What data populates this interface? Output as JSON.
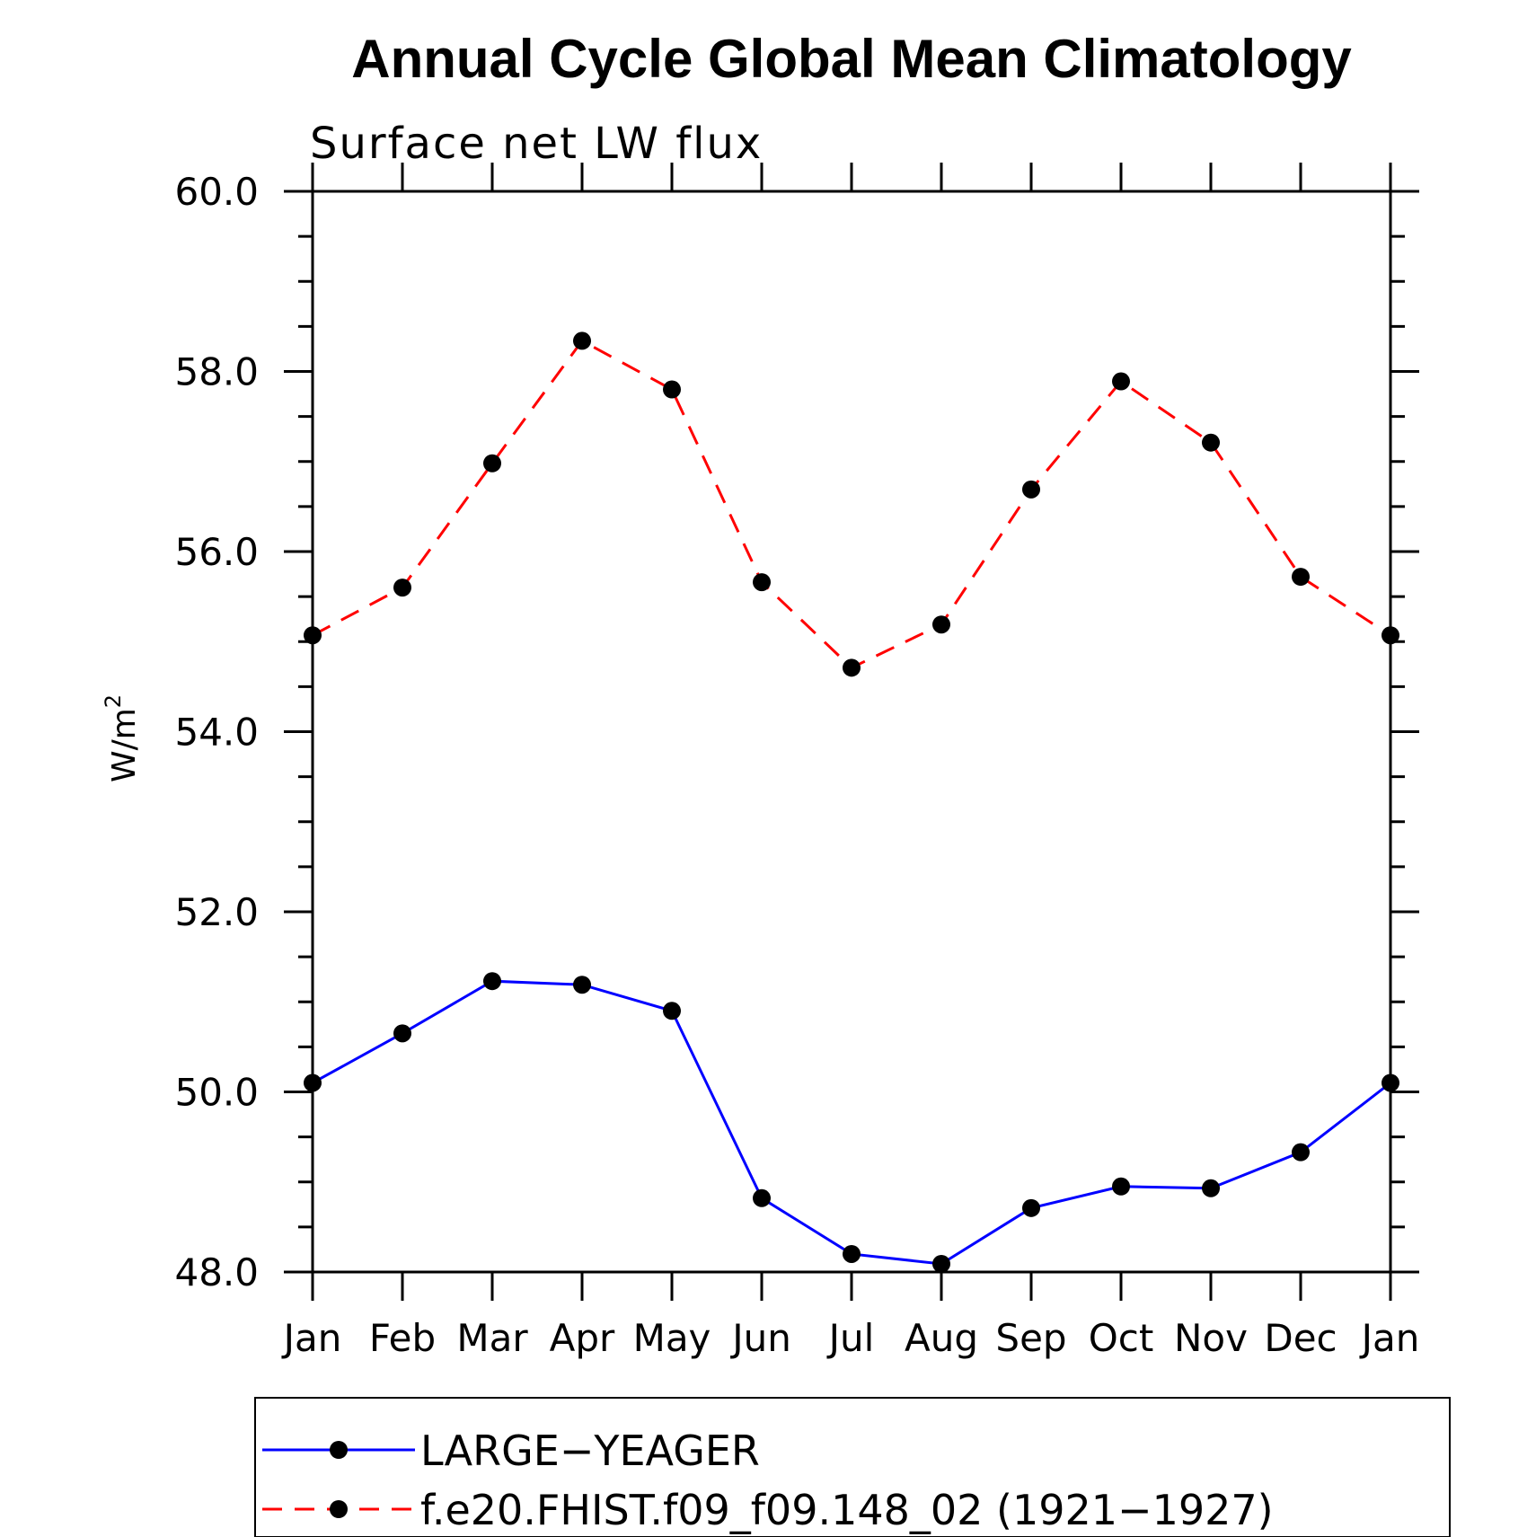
{
  "chart_data": {
    "type": "line",
    "title": "Annual Cycle Global Mean Climatology",
    "subtitle": "Surface net LW flux",
    "ylabel": "W/m",
    "ylabel_superscript": "2",
    "xlabel": "",
    "categories": [
      "Jan",
      "Feb",
      "Mar",
      "Apr",
      "May",
      "Jun",
      "Jul",
      "Aug",
      "Sep",
      "Oct",
      "Nov",
      "Dec",
      "Jan"
    ],
    "ylim": [
      48.0,
      60.0
    ],
    "yticks": [
      "48.0",
      "50.0",
      "52.0",
      "54.0",
      "56.0",
      "58.0",
      "60.0"
    ],
    "grid": false,
    "legend_position": "bottom",
    "series": [
      {
        "name": "LARGE−YEAGER",
        "color": "#0000ff",
        "line_style": "solid",
        "marker": "filled-circle",
        "values": [
          50.1,
          50.65,
          51.23,
          51.19,
          50.9,
          48.82,
          48.2,
          48.09,
          48.71,
          48.95,
          48.93,
          49.33,
          50.1
        ]
      },
      {
        "name": "f.e20.FHIST.f09_f09.148_02 (1921−1927)",
        "color": "#ff0000",
        "line_style": "dashed",
        "marker": "filled-circle",
        "values": [
          55.07,
          55.6,
          56.98,
          58.34,
          57.8,
          55.66,
          54.71,
          55.19,
          56.69,
          57.89,
          57.21,
          55.72,
          55.07
        ]
      }
    ]
  }
}
